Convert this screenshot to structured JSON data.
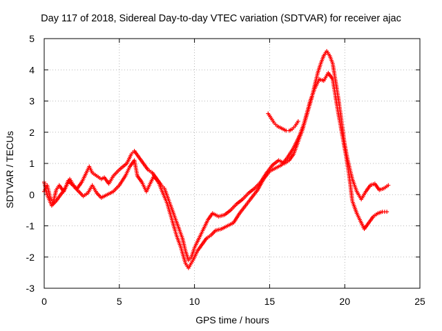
{
  "chart_data": {
    "type": "scatter",
    "title": "Day 117 of 2018, Sidereal Day-to-day VTEC variation (SDTVAR) for receiver ajac",
    "xlabel": "GPS time / hours",
    "ylabel": "SDTVAR / TECUs",
    "xlim": [
      0,
      25
    ],
    "ylim": [
      -3,
      5
    ],
    "xticks": [
      0,
      5,
      10,
      15,
      20,
      25
    ],
    "yticks": [
      -3,
      -2,
      -1,
      0,
      1,
      2,
      3,
      4,
      5
    ],
    "grid": true,
    "marker": "+",
    "series": [
      {
        "name": "track-main",
        "color": "#ff0000",
        "points": [
          [
            0.0,
            0.1
          ],
          [
            0.2,
            0.3
          ],
          [
            0.4,
            -0.1
          ],
          [
            0.6,
            -0.25
          ],
          [
            0.8,
            0.15
          ],
          [
            1.0,
            0.3
          ],
          [
            1.3,
            0.1
          ],
          [
            1.6,
            0.45
          ],
          [
            1.9,
            0.3
          ],
          [
            2.2,
            0.2
          ],
          [
            2.5,
            0.4
          ],
          [
            2.8,
            0.7
          ],
          [
            3.0,
            0.9
          ],
          [
            3.2,
            0.7
          ],
          [
            3.5,
            0.6
          ],
          [
            3.8,
            0.5
          ],
          [
            4.0,
            0.55
          ],
          [
            4.3,
            0.35
          ],
          [
            4.6,
            0.6
          ],
          [
            5.0,
            0.8
          ],
          [
            5.5,
            1.0
          ],
          [
            5.8,
            1.3
          ],
          [
            6.0,
            1.4
          ],
          [
            6.3,
            1.2
          ],
          [
            6.6,
            1.0
          ],
          [
            6.9,
            0.8
          ],
          [
            7.2,
            0.7
          ],
          [
            7.5,
            0.5
          ],
          [
            7.8,
            0.3
          ],
          [
            8.0,
            0.2
          ],
          [
            8.3,
            -0.2
          ],
          [
            8.6,
            -0.6
          ],
          [
            8.9,
            -1.0
          ],
          [
            9.2,
            -1.4
          ],
          [
            9.4,
            -1.8
          ],
          [
            9.6,
            -2.1
          ],
          [
            9.8,
            -2.0
          ],
          [
            10.0,
            -1.7
          ],
          [
            10.3,
            -1.4
          ],
          [
            10.6,
            -1.1
          ],
          [
            10.9,
            -0.8
          ],
          [
            11.2,
            -0.6
          ],
          [
            11.6,
            -0.7
          ],
          [
            12.0,
            -0.65
          ],
          [
            12.4,
            -0.5
          ],
          [
            12.8,
            -0.3
          ],
          [
            13.2,
            -0.15
          ],
          [
            13.6,
            0.05
          ],
          [
            14.0,
            0.2
          ],
          [
            14.4,
            0.4
          ],
          [
            14.8,
            0.7
          ],
          [
            15.2,
            0.95
          ],
          [
            15.6,
            1.1
          ],
          [
            16.0,
            1.0
          ],
          [
            16.3,
            1.1
          ],
          [
            16.6,
            1.3
          ],
          [
            16.9,
            1.7
          ],
          [
            17.2,
            2.1
          ],
          [
            17.5,
            2.6
          ],
          [
            17.8,
            3.1
          ],
          [
            18.0,
            3.5
          ],
          [
            18.2,
            3.9
          ],
          [
            18.4,
            4.2
          ],
          [
            18.6,
            4.45
          ],
          [
            18.8,
            4.6
          ],
          [
            19.0,
            4.45
          ],
          [
            19.2,
            4.2
          ],
          [
            19.4,
            3.6
          ],
          [
            19.6,
            3.0
          ],
          [
            19.8,
            2.3
          ],
          [
            20.0,
            1.6
          ],
          [
            20.2,
            1.1
          ],
          [
            20.5,
            0.5
          ],
          [
            20.8,
            0.1
          ],
          [
            21.1,
            -0.15
          ],
          [
            21.4,
            0.1
          ],
          [
            21.7,
            0.3
          ],
          [
            22.0,
            0.35
          ],
          [
            22.3,
            0.15
          ],
          [
            22.6,
            0.2
          ],
          [
            22.9,
            0.3
          ]
        ]
      },
      {
        "name": "track-lower",
        "color": "#ff0000",
        "points": [
          [
            0.0,
            0.4
          ],
          [
            0.2,
            0.0
          ],
          [
            0.5,
            -0.35
          ],
          [
            0.8,
            -0.2
          ],
          [
            1.1,
            0.0
          ],
          [
            1.4,
            0.2
          ],
          [
            1.7,
            0.5
          ],
          [
            2.0,
            0.25
          ],
          [
            2.3,
            0.1
          ],
          [
            2.6,
            -0.05
          ],
          [
            2.9,
            0.05
          ],
          [
            3.2,
            0.3
          ],
          [
            3.5,
            0.05
          ],
          [
            3.8,
            -0.1
          ],
          [
            4.2,
            0.0
          ],
          [
            4.6,
            0.1
          ],
          [
            5.0,
            0.3
          ],
          [
            5.4,
            0.6
          ],
          [
            5.7,
            0.9
          ],
          [
            6.0,
            1.1
          ],
          [
            6.2,
            0.6
          ],
          [
            6.5,
            0.4
          ],
          [
            6.8,
            0.1
          ],
          [
            7.0,
            0.3
          ],
          [
            7.3,
            0.6
          ],
          [
            7.6,
            0.4
          ],
          [
            7.9,
            0.05
          ],
          [
            8.2,
            -0.3
          ],
          [
            8.5,
            -0.8
          ],
          [
            8.8,
            -1.3
          ],
          [
            9.1,
            -1.7
          ],
          [
            9.4,
            -2.2
          ],
          [
            9.6,
            -2.35
          ],
          [
            9.9,
            -2.1
          ],
          [
            10.2,
            -1.8
          ],
          [
            10.5,
            -1.6
          ],
          [
            10.8,
            -1.4
          ],
          [
            11.1,
            -1.3
          ],
          [
            11.4,
            -1.15
          ],
          [
            11.8,
            -1.1
          ],
          [
            12.2,
            -1.0
          ],
          [
            12.6,
            -0.9
          ],
          [
            13.0,
            -0.6
          ],
          [
            13.4,
            -0.35
          ],
          [
            13.8,
            -0.1
          ],
          [
            14.2,
            0.15
          ],
          [
            14.6,
            0.5
          ],
          [
            15.0,
            0.75
          ],
          [
            15.4,
            0.85
          ],
          [
            15.8,
            0.95
          ],
          [
            16.2,
            1.2
          ],
          [
            16.6,
            1.5
          ],
          [
            17.0,
            1.9
          ],
          [
            17.3,
            2.3
          ],
          [
            17.7,
            3.0
          ],
          [
            18.0,
            3.4
          ],
          [
            18.3,
            3.7
          ],
          [
            18.6,
            3.65
          ],
          [
            18.9,
            3.9
          ],
          [
            19.2,
            3.7
          ],
          [
            19.5,
            2.8
          ],
          [
            19.8,
            2.0
          ],
          [
            20.1,
            1.2
          ],
          [
            20.3,
            0.6
          ],
          [
            20.5,
            -0.2
          ],
          [
            20.8,
            -0.6
          ],
          [
            21.1,
            -0.9
          ],
          [
            21.3,
            -1.1
          ],
          [
            21.6,
            -0.9
          ],
          [
            21.9,
            -0.7
          ],
          [
            22.2,
            -0.6
          ],
          [
            22.5,
            -0.55
          ],
          [
            22.8,
            -0.55
          ]
        ]
      },
      {
        "name": "track-segment-15h",
        "color": "#ff0000",
        "points": [
          [
            14.9,
            2.6
          ],
          [
            15.1,
            2.45
          ],
          [
            15.3,
            2.3
          ],
          [
            15.5,
            2.2
          ],
          [
            15.7,
            2.15
          ],
          [
            15.9,
            2.1
          ],
          [
            16.1,
            2.05
          ],
          [
            16.3,
            2.05
          ],
          [
            16.5,
            2.1
          ],
          [
            16.7,
            2.2
          ],
          [
            16.9,
            2.35
          ]
        ]
      }
    ]
  }
}
